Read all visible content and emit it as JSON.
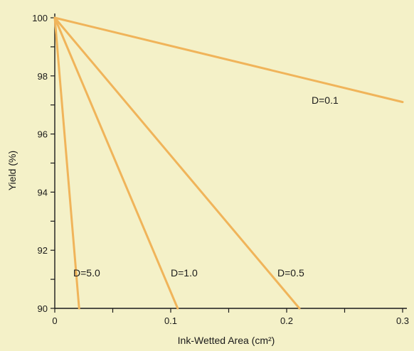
{
  "chart_data": {
    "type": "line",
    "title": "",
    "xlabel": "Ink-Wetted Area (cm²)",
    "ylabel": "Yield (%)",
    "xlim": [
      0,
      0.3
    ],
    "ylim": [
      90,
      100
    ],
    "grid": false,
    "x_ticks": [
      0,
      0.05,
      0.1,
      0.15,
      0.2,
      0.25,
      0.3
    ],
    "x_tick_labels": [
      "0",
      "",
      "0.1",
      "",
      "0.2",
      "",
      "0.3"
    ],
    "y_ticks": [
      90,
      91,
      92,
      93,
      94,
      95,
      96,
      97,
      98,
      99,
      100
    ],
    "y_tick_labels": [
      "90",
      "",
      "92",
      "",
      "94",
      "",
      "96",
      "",
      "98",
      "",
      "100"
    ],
    "line_color": "#f0b45a",
    "series": [
      {
        "name": "D=0.1",
        "x": [
          0,
          0.3
        ],
        "y": [
          100,
          97.1
        ]
      },
      {
        "name": "D=0.5",
        "x": [
          0,
          0.211
        ],
        "y": [
          100,
          90
        ]
      },
      {
        "name": "D=1.0",
        "x": [
          0,
          0.106
        ],
        "y": [
          100,
          90
        ]
      },
      {
        "name": "D=5.0",
        "x": [
          0,
          0.021
        ],
        "y": [
          100,
          90
        ]
      }
    ]
  }
}
